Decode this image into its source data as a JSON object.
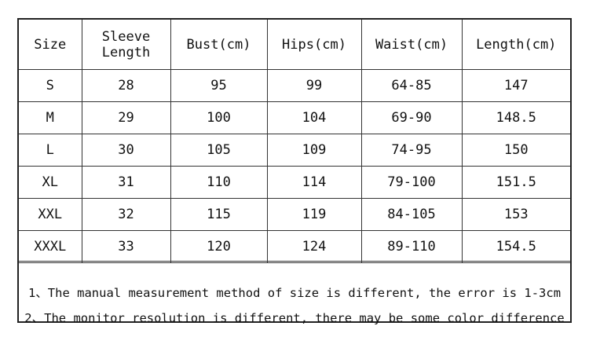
{
  "table": {
    "headers": {
      "size": "Size",
      "sleeve_line1": "Sleeve",
      "sleeve_line2": "Length",
      "bust": "Bust(cm)",
      "hips": "Hips(cm)",
      "waist": "Waist(cm)",
      "length": "Length(cm)"
    },
    "rows": [
      {
        "size": "S",
        "sleeve": "28",
        "bust": "95",
        "hips": "99",
        "waist": "64-85",
        "length": "147"
      },
      {
        "size": "M",
        "sleeve": "29",
        "bust": "100",
        "hips": "104",
        "waist": "69-90",
        "length": "148.5"
      },
      {
        "size": "L",
        "sleeve": "30",
        "bust": "105",
        "hips": "109",
        "waist": "74-95",
        "length": "150"
      },
      {
        "size": "XL",
        "sleeve": "31",
        "bust": "110",
        "hips": "114",
        "waist": "79-100",
        "length": "151.5"
      },
      {
        "size": "XXL",
        "sleeve": "32",
        "bust": "115",
        "hips": "119",
        "waist": "84-105",
        "length": "153"
      },
      {
        "size": "XXXL",
        "sleeve": "33",
        "bust": "120",
        "hips": "124",
        "waist": "89-110",
        "length": "154.5"
      }
    ]
  },
  "notes": {
    "note1": "1、The manual measurement method of size is different, the error is 1-3cm",
    "note2": "2、The monitor resolution is different, there may be some color difference"
  }
}
